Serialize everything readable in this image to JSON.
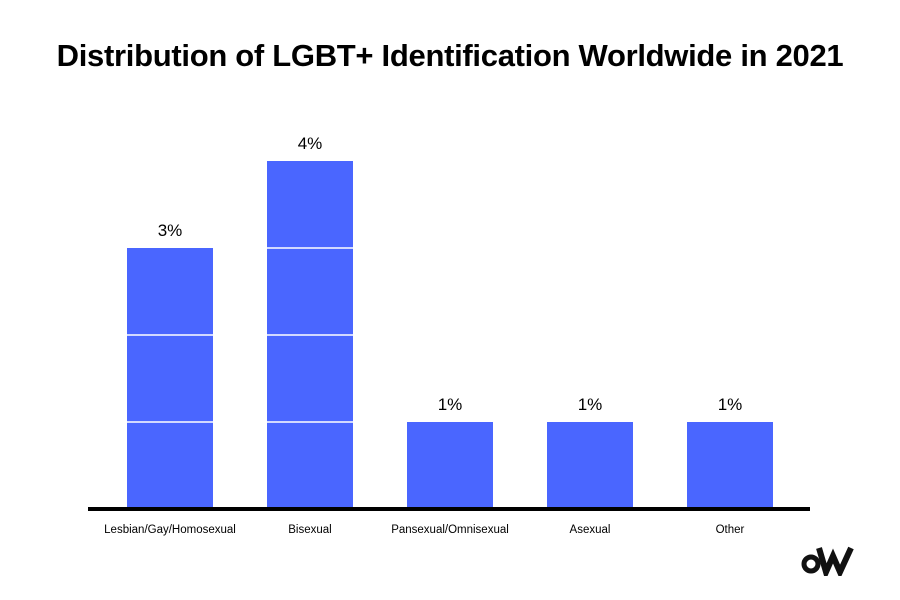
{
  "chart_data": {
    "type": "bar",
    "title": "Distribution of LGBT+ Identification Worldwide in 2021",
    "xlabel": "",
    "ylabel": "",
    "categories": [
      "Lesbian/Gay/Homosexual",
      "Bisexual",
      "Pansexual/Omnisexual",
      "Asexual",
      "Other"
    ],
    "values": [
      3,
      4,
      1,
      1,
      1
    ],
    "value_labels": [
      "3%",
      "4%",
      "1%",
      "1%",
      "1%"
    ],
    "unit": "%",
    "ylim": [
      0,
      4
    ],
    "grid": false,
    "legend": "none",
    "colors": {
      "bar": "#4a66ff",
      "segment_divider": "#ffffff",
      "baseline": "#000000"
    }
  },
  "brand": {
    "logo_text": "oW",
    "logo_icon": "ow-logo-icon"
  }
}
